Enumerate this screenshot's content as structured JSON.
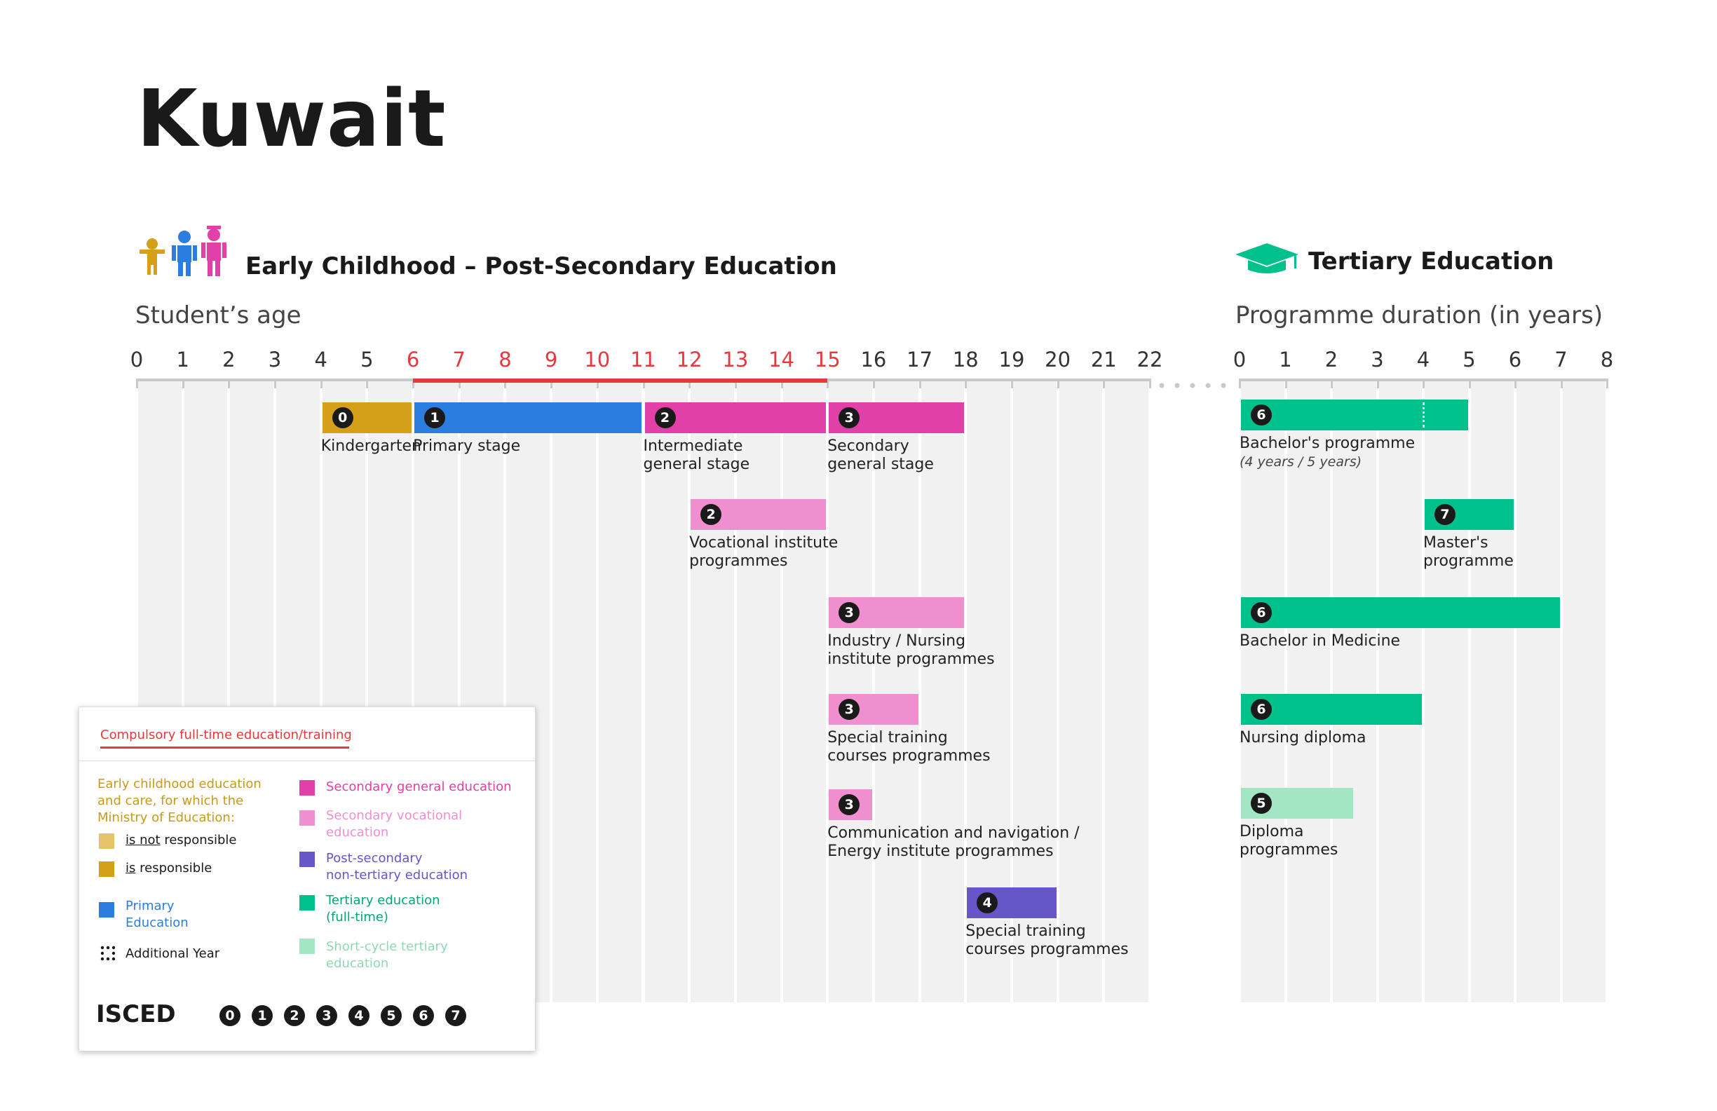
{
  "title": "Kuwait",
  "left_section": {
    "title": "Early Childhood – Post-Secondary Education",
    "axis_title": "Student’s age"
  },
  "right_section": {
    "title": "Tertiary Education",
    "axis_title": "Programme duration (in years)"
  },
  "colors": {
    "kindergarten": "#d4a017",
    "kindergarten_light": "#e6c56a",
    "primary": "#2b7de0",
    "secondary_general": "#e040a8",
    "secondary_vocational": "#ef8fcf",
    "post_secondary": "#6656c8",
    "tertiary": "#00c08b",
    "short_cycle": "#a3e6c4",
    "compulsory": "#e8383d"
  },
  "age_axis": {
    "min": 0,
    "max": 22,
    "ticks": [
      "0",
      "1",
      "2",
      "3",
      "4",
      "5",
      "6",
      "7",
      "8",
      "9",
      "10",
      "11",
      "12",
      "13",
      "14",
      "15",
      "16",
      "17",
      "18",
      "19",
      "20",
      "21",
      "22"
    ],
    "compulsory_range": [
      6,
      15
    ]
  },
  "duration_axis": {
    "min": 0,
    "max": 8,
    "ticks": [
      "0",
      "1",
      "2",
      "3",
      "4",
      "5",
      "6",
      "7",
      "8"
    ]
  },
  "left_programmes": [
    {
      "isced": "0",
      "label": "Kindergarten",
      "start": 4,
      "end": 6,
      "row": 0,
      "color": "kindergarten"
    },
    {
      "isced": "1",
      "label": "Primary stage",
      "start": 6,
      "end": 11,
      "row": 0,
      "color": "primary"
    },
    {
      "isced": "2",
      "label": "Intermediate\ngeneral stage",
      "start": 11,
      "end": 15,
      "row": 0,
      "color": "secondary_general"
    },
    {
      "isced": "3",
      "label": "Secondary\ngeneral stage",
      "start": 15,
      "end": 18,
      "row": 0,
      "color": "secondary_general"
    },
    {
      "isced": "2",
      "label": "Vocational institute\nprogrammes",
      "start": 12,
      "end": 15,
      "row": 1,
      "color": "secondary_vocational"
    },
    {
      "isced": "3",
      "label": "Industry / Nursing\ninstitute programmes",
      "start": 15,
      "end": 18,
      "row": 2,
      "color": "secondary_vocational"
    },
    {
      "isced": "3",
      "label": "Special training\ncourses programmes",
      "start": 15,
      "end": 17,
      "row": 3,
      "color": "secondary_vocational"
    },
    {
      "isced": "3",
      "label": "Communication and navigation /\nEnergy institute programmes",
      "start": 15,
      "end": 16,
      "row": 4,
      "color": "secondary_vocational"
    },
    {
      "isced": "4",
      "label": "Special training\ncourses programmes",
      "start": 18,
      "end": 20,
      "row": 5,
      "color": "post_secondary"
    }
  ],
  "right_programmes": [
    {
      "isced": "6",
      "label": "Bachelor's programme",
      "sublabel": "(4 years / 5 years)",
      "start": 0,
      "end": 5,
      "row": 0,
      "color": "tertiary",
      "dotted_at": 4
    },
    {
      "isced": "7",
      "label": "Master's\nprogramme",
      "start": 4,
      "end": 6,
      "row": 1,
      "color": "tertiary"
    },
    {
      "isced": "6",
      "label": "Bachelor in Medicine",
      "start": 0,
      "end": 7,
      "row": 2,
      "color": "tertiary"
    },
    {
      "isced": "6",
      "label": "Nursing diploma",
      "start": 0,
      "end": 4,
      "row": 3,
      "color": "tertiary"
    },
    {
      "isced": "5",
      "label": "Diploma\nprogrammes",
      "start": 0,
      "end": 2.5,
      "row": 4,
      "color": "short_cycle"
    }
  ],
  "legend": {
    "compulsory": "Compulsory full-time education/training",
    "ecec_heading": "Early childhood education\nand care, for which the\nMinistry of Education:",
    "not_resp_a": "is not",
    "not_resp_b": " responsible",
    "resp_a": "is",
    "resp_b": " responsible",
    "primary": "Primary\nEducation",
    "additional": "Additional Year",
    "sec_general": "Secondary general education",
    "sec_vocational": "Secondary vocational\neducation",
    "post_secondary": "Post-secondary\nnon-tertiary education",
    "tertiary": "Tertiary education\n(full-time)",
    "short_cycle": "Short-cycle tertiary\neducation",
    "isced_label": "ISCED",
    "isced_levels": [
      "0",
      "1",
      "2",
      "3",
      "4",
      "5",
      "6",
      "7"
    ]
  }
}
